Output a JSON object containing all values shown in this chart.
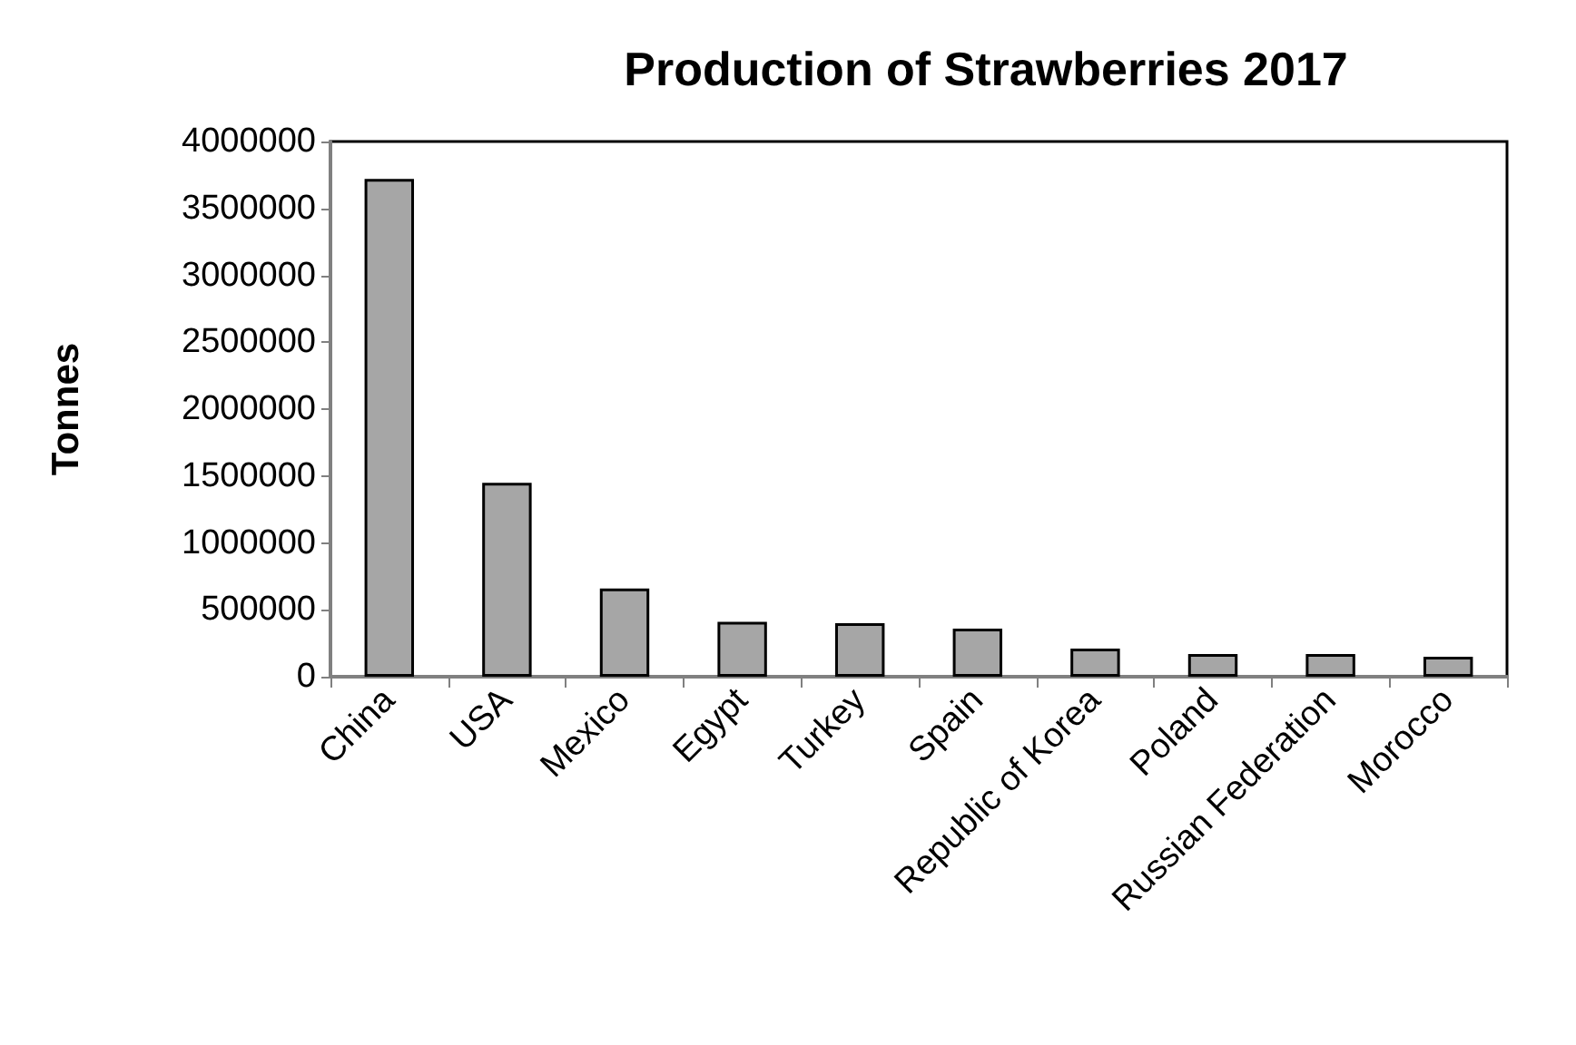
{
  "chart_data": {
    "type": "bar",
    "title": "Production of Strawberries 2017",
    "ylabel": "Tonnes",
    "categories": [
      "China",
      "USA",
      "Mexico",
      "Egypt",
      "Turkey",
      "Spain",
      "Republic of Korea",
      "Poland",
      "Russian Federation",
      "Morocco"
    ],
    "values": [
      3720000,
      1450000,
      660000,
      410000,
      400000,
      360000,
      210000,
      170000,
      170000,
      150000
    ],
    "color": "#a6a6a6",
    "ylim": [
      0,
      4000000
    ],
    "yticks": [
      0,
      500000,
      1000000,
      1500000,
      2000000,
      2500000,
      3000000,
      3500000,
      4000000
    ],
    "grid": false
  }
}
